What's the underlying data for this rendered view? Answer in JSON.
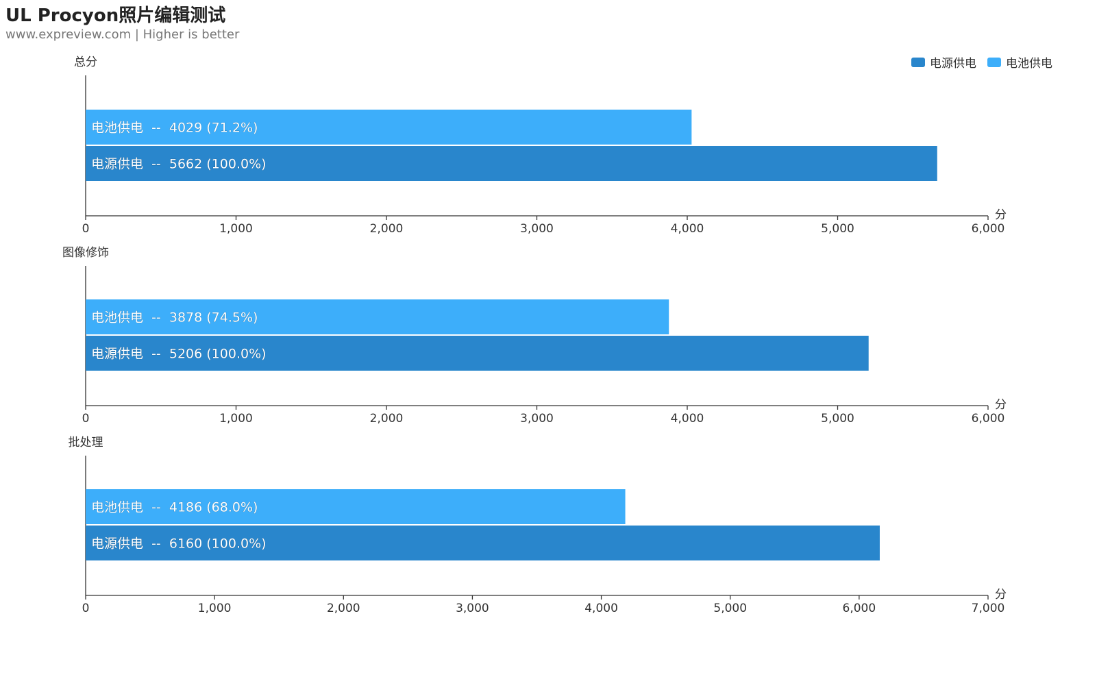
{
  "header": {
    "title": "UL Procyon照片编辑测试",
    "subtitle": "www.expreview.com | Higher is better"
  },
  "legend": [
    {
      "label": "电源供电",
      "color": "#2986cc"
    },
    {
      "label": "电池供电",
      "color": "#3daefa"
    }
  ],
  "chart_data": [
    {
      "type": "bar",
      "title": "总分",
      "xlabel": "分",
      "xlim": [
        0,
        6000
      ],
      "ticks": [
        "0",
        "1,000",
        "2,000",
        "3,000",
        "4,000",
        "5,000",
        "6,000"
      ],
      "series": [
        {
          "name": "电池供电",
          "value": 4029,
          "label": "电池供电  --  4029 (71.2%)"
        },
        {
          "name": "电源供电",
          "value": 5662,
          "label": "电源供电  --  5662 (100.0%)"
        }
      ]
    },
    {
      "type": "bar",
      "title": "图像修饰",
      "xlabel": "分",
      "xlim": [
        0,
        6000
      ],
      "ticks": [
        "0",
        "1,000",
        "2,000",
        "3,000",
        "4,000",
        "5,000",
        "6,000"
      ],
      "series": [
        {
          "name": "电池供电",
          "value": 3878,
          "label": "电池供电  --  3878 (74.5%)"
        },
        {
          "name": "电源供电",
          "value": 5206,
          "label": "电源供电  --  5206 (100.0%)"
        }
      ]
    },
    {
      "type": "bar",
      "title": "批处理",
      "xlabel": "分",
      "xlim": [
        0,
        7000
      ],
      "ticks": [
        "0",
        "1,000",
        "2,000",
        "3,000",
        "4,000",
        "5,000",
        "6,000",
        "7,000"
      ],
      "series": [
        {
          "name": "电池供电",
          "value": 4186,
          "label": "电池供电  --  4186 (68.0%)"
        },
        {
          "name": "电源供电",
          "value": 6160,
          "label": "电源供电  --  6160 (100.0%)"
        }
      ]
    }
  ]
}
